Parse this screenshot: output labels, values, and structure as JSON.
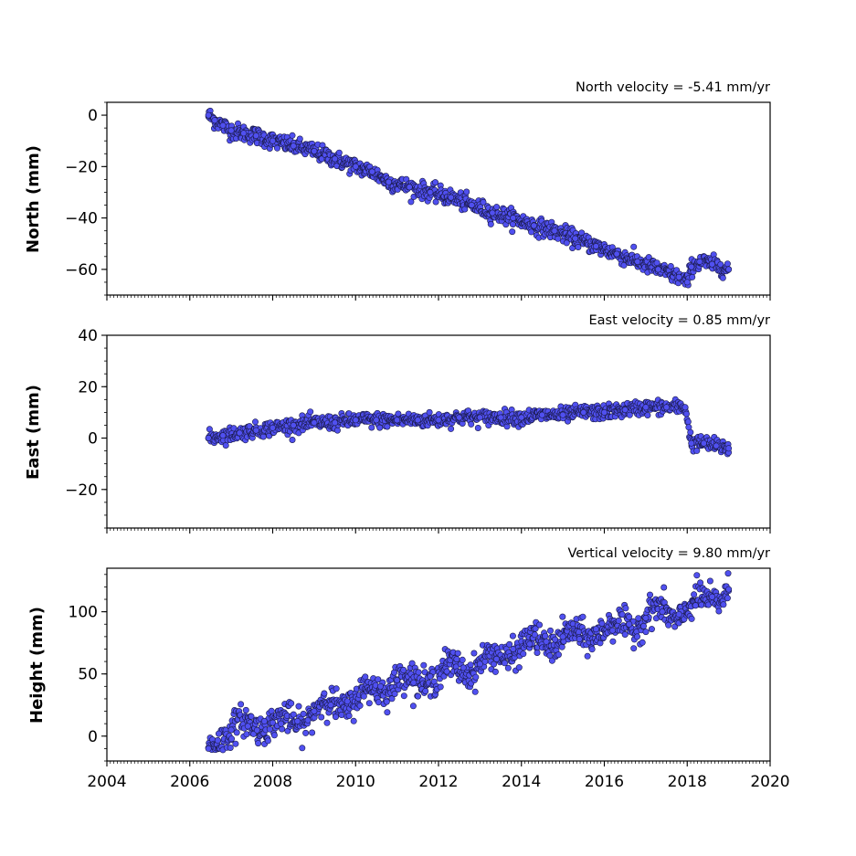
{
  "chart_data": [
    {
      "type": "scatter",
      "title": "North velocity = -5.41 mm/yr",
      "xlabel": "",
      "ylabel": "North (mm)",
      "xlim": [
        2004,
        2020
      ],
      "ylim": [
        -70,
        5
      ],
      "yticks": [
        0,
        -20,
        -40,
        -60
      ],
      "ytick_labels": [
        "0",
        "−20",
        "−40",
        "−60"
      ],
      "marker_color": "#5050f0",
      "marker_edge": "#1a1a4a",
      "series": [
        {
          "x": [
            2006.45,
            2006.6,
            2006.8,
            2007.0,
            2007.3,
            2007.6,
            2008.0,
            2008.5,
            2009.0,
            2009.5,
            2010.0,
            2010.4,
            2010.8,
            2011.3,
            2011.8,
            2012.3,
            2012.8,
            2013.3,
            2013.8,
            2014.3,
            2014.8,
            2015.3,
            2015.8,
            2016.3,
            2016.8,
            2017.3,
            2017.8,
            2018.0,
            2018.1,
            2018.3,
            2018.6,
            2019.0
          ],
          "y": [
            0,
            -2,
            -4,
            -6,
            -7,
            -8,
            -10,
            -12,
            -14,
            -17,
            -20,
            -22,
            -26,
            -28,
            -30,
            -32,
            -35,
            -38,
            -40,
            -43,
            -45,
            -48,
            -51,
            -54,
            -57,
            -60,
            -63,
            -65,
            -59,
            -57,
            -58,
            -60
          ]
        }
      ]
    },
    {
      "type": "scatter",
      "title": "East velocity = 0.85 mm/yr",
      "xlabel": "",
      "ylabel": "East (mm)",
      "xlim": [
        2004,
        2020
      ],
      "ylim": [
        -35,
        40
      ],
      "yticks": [
        40,
        20,
        0,
        -20
      ],
      "ytick_labels": [
        "40",
        "20",
        "0",
        "−20"
      ],
      "marker_color": "#5050f0",
      "marker_edge": "#1a1a4a",
      "series": [
        {
          "x": [
            2006.45,
            2006.8,
            2007.2,
            2007.6,
            2008.0,
            2008.5,
            2009.0,
            2009.5,
            2010.0,
            2010.5,
            2011.0,
            2011.5,
            2012.0,
            2012.5,
            2013.0,
            2013.5,
            2014.0,
            2014.5,
            2015.0,
            2015.5,
            2016.0,
            2016.5,
            2017.0,
            2017.5,
            2017.95,
            2018.1,
            2018.4,
            2018.7,
            2019.0
          ],
          "y": [
            0,
            1,
            2,
            3,
            4,
            5,
            6,
            6,
            7,
            7,
            7,
            7,
            7,
            8,
            8,
            8,
            8,
            9,
            9,
            10,
            10,
            11,
            12,
            12,
            12,
            -2,
            -2,
            -3,
            -4
          ]
        }
      ]
    },
    {
      "type": "scatter",
      "title": "Vertical velocity = 9.80 mm/yr",
      "xlabel": "",
      "ylabel": "Height (mm)",
      "xlim": [
        2004,
        2020
      ],
      "ylim": [
        -20,
        135
      ],
      "yticks": [
        100,
        50,
        0
      ],
      "ytick_labels": [
        "100",
        "50",
        "0"
      ],
      "xticks": [
        2004,
        2006,
        2008,
        2010,
        2012,
        2014,
        2016,
        2018,
        2020
      ],
      "xtick_labels": [
        "2004",
        "2006",
        "2008",
        "2010",
        "2012",
        "2014",
        "2016",
        "2018",
        "2020"
      ],
      "marker_color": "#5050f0",
      "marker_edge": "#1a1a4a",
      "series": [
        {
          "x": [
            2006.45,
            2006.7,
            2007.0,
            2007.4,
            2007.8,
            2008.2,
            2008.6,
            2009.0,
            2009.4,
            2009.8,
            2010.2,
            2010.6,
            2011.0,
            2011.4,
            2011.8,
            2012.2,
            2012.6,
            2013.0,
            2013.4,
            2013.8,
            2014.2,
            2014.6,
            2015.0,
            2015.4,
            2015.8,
            2016.2,
            2016.6,
            2017.0,
            2017.4,
            2017.8,
            2018.2,
            2018.6,
            2019.0
          ],
          "y": [
            -10,
            2,
            5,
            8,
            12,
            10,
            12,
            20,
            25,
            28,
            32,
            40,
            45,
            43,
            48,
            52,
            55,
            58,
            62,
            70,
            74,
            76,
            80,
            78,
            86,
            85,
            90,
            95,
            100,
            98,
            105,
            112,
            118
          ]
        }
      ]
    }
  ]
}
